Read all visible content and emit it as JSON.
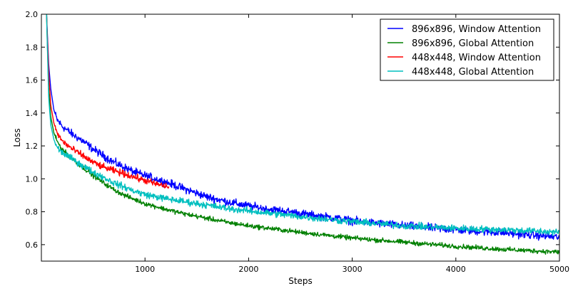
{
  "chart_data": {
    "type": "line",
    "xlabel": "Steps",
    "ylabel": "Loss",
    "xlim": [
      0,
      5000
    ],
    "ylim": [
      0.5,
      2.0
    ],
    "x_ticks": [
      1000,
      2000,
      3000,
      4000,
      5000
    ],
    "x_tick_labels": [
      "1000",
      "2000",
      "3000",
      "4000",
      "5000"
    ],
    "y_ticks": [
      0.6,
      0.8,
      1.0,
      1.2,
      1.4,
      1.6,
      1.8,
      2.0
    ],
    "y_tick_labels": [
      "0.6",
      "0.8",
      "1.0",
      "1.2",
      "1.4",
      "1.6",
      "1.8",
      "2.0"
    ],
    "grid": false,
    "legend_position": "top-right",
    "series": [
      {
        "name": "896x896, Window Attention",
        "color": "#0000ff",
        "noise": 0.012,
        "x": [
          50,
          70,
          90,
          120,
          150,
          200,
          300,
          400,
          500,
          600,
          700,
          800,
          900,
          1000,
          1200,
          1400,
          1600,
          1800,
          2000,
          2200,
          2400,
          2600,
          2800,
          3000,
          3500,
          4000,
          4500,
          5000
        ],
        "y": [
          2.0,
          1.7,
          1.55,
          1.42,
          1.36,
          1.32,
          1.27,
          1.23,
          1.18,
          1.14,
          1.1,
          1.07,
          1.04,
          1.02,
          0.98,
          0.935,
          0.89,
          0.86,
          0.835,
          0.815,
          0.8,
          0.78,
          0.765,
          0.745,
          0.715,
          0.69,
          0.67,
          0.645
        ]
      },
      {
        "name": "896x896, Global Attention",
        "color": "#008000",
        "noise": 0.007,
        "x": [
          50,
          70,
          90,
          120,
          150,
          200,
          300,
          400,
          500,
          600,
          700,
          800,
          900,
          1000,
          1200,
          1400,
          1600,
          1800,
          2000,
          2500,
          3000,
          3500,
          4000,
          4500,
          5000
        ],
        "y": [
          2.0,
          1.55,
          1.38,
          1.28,
          1.23,
          1.18,
          1.12,
          1.07,
          1.02,
          0.975,
          0.935,
          0.9,
          0.875,
          0.85,
          0.815,
          0.785,
          0.76,
          0.735,
          0.715,
          0.675,
          0.64,
          0.615,
          0.59,
          0.57,
          0.555
        ]
      },
      {
        "name": "448x448, Window Attention",
        "color": "#ff0000",
        "noise": 0.01,
        "x": [
          50,
          70,
          90,
          120,
          150,
          200,
          300,
          400,
          500,
          600,
          700,
          800,
          900,
          1000,
          1100,
          1200,
          1230
        ],
        "y": [
          2.0,
          1.65,
          1.45,
          1.34,
          1.28,
          1.23,
          1.18,
          1.14,
          1.1,
          1.07,
          1.05,
          1.03,
          1.01,
          0.99,
          0.97,
          0.955,
          0.95
        ]
      },
      {
        "name": "448x448, Global Attention",
        "color": "#00bfbf",
        "noise": 0.01,
        "x": [
          50,
          70,
          90,
          120,
          150,
          200,
          300,
          400,
          500,
          600,
          700,
          800,
          900,
          1000,
          1200,
          1400,
          1600,
          1800,
          2000,
          2500,
          3000,
          3500,
          4000,
          4500,
          5000
        ],
        "y": [
          2.0,
          1.5,
          1.33,
          1.24,
          1.19,
          1.16,
          1.12,
          1.08,
          1.04,
          1.01,
          0.975,
          0.95,
          0.925,
          0.905,
          0.88,
          0.86,
          0.84,
          0.82,
          0.805,
          0.77,
          0.74,
          0.715,
          0.7,
          0.69,
          0.675
        ]
      }
    ]
  }
}
